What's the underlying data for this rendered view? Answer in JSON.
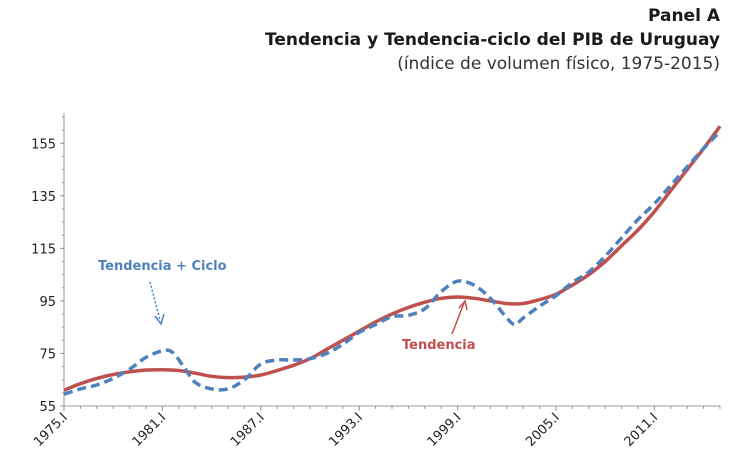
{
  "title": {
    "line1": "Panel A",
    "line2": "Tendencia y Tendencia-ciclo del PIB de Uruguay",
    "line3": "(índice de volumen físico, 1975-2015)"
  },
  "colors": {
    "trend": "#c0504d",
    "cycle": "#4f81bd",
    "axis": "#999999"
  },
  "chart_data": {
    "type": "line",
    "title": "Tendencia y Tendencia-ciclo del PIB de Uruguay",
    "xlabel": "",
    "ylabel": "",
    "xlim": [
      1975.0,
      2015.0
    ],
    "ylim": [
      55,
      165
    ],
    "y_ticks": [
      55,
      75,
      95,
      115,
      135,
      155
    ],
    "x_ticks": [
      {
        "label": "1975.I",
        "value": 1975
      },
      {
        "label": "1981.I",
        "value": 1981
      },
      {
        "label": "1987.I",
        "value": 1987
      },
      {
        "label": "1993.I",
        "value": 1993
      },
      {
        "label": "1999.I",
        "value": 1999
      },
      {
        "label": "2005.I",
        "value": 2005
      },
      {
        "label": "2011.I",
        "value": 2011
      }
    ],
    "grid": false,
    "series": [
      {
        "name": "Tendencia",
        "style": "solid",
        "points": [
          [
            1975,
            61
          ],
          [
            1976,
            63.5
          ],
          [
            1977,
            65.5
          ],
          [
            1978,
            67
          ],
          [
            1979,
            68
          ],
          [
            1980,
            68.7
          ],
          [
            1981,
            68.8
          ],
          [
            1982,
            68.5
          ],
          [
            1983,
            67.5
          ],
          [
            1984,
            66.3
          ],
          [
            1985,
            65.8
          ],
          [
            1986,
            66
          ],
          [
            1987,
            66.8
          ],
          [
            1988,
            68.5
          ],
          [
            1989,
            70.5
          ],
          [
            1990,
            73
          ],
          [
            1991,
            76.5
          ],
          [
            1992,
            80
          ],
          [
            1993,
            83.5
          ],
          [
            1994,
            87
          ],
          [
            1995,
            90
          ],
          [
            1996,
            92.5
          ],
          [
            1997,
            94.5
          ],
          [
            1998,
            96
          ],
          [
            1999,
            96.5
          ],
          [
            2000,
            96
          ],
          [
            2001,
            95
          ],
          [
            2002,
            94
          ],
          [
            2003,
            94
          ],
          [
            2004,
            95.5
          ],
          [
            2005,
            97.5
          ],
          [
            2006,
            101
          ],
          [
            2007,
            105
          ],
          [
            2008,
            110
          ],
          [
            2009,
            116
          ],
          [
            2010,
            122
          ],
          [
            2011,
            129
          ],
          [
            2012,
            137
          ],
          [
            2013,
            145
          ],
          [
            2014,
            153
          ],
          [
            2015,
            161.5
          ]
        ]
      },
      {
        "name": "Tendencia + Ciclo",
        "style": "dashed",
        "points": [
          [
            1975,
            59.5
          ],
          [
            1976,
            61.5
          ],
          [
            1977,
            63
          ],
          [
            1978,
            65.5
          ],
          [
            1979,
            69
          ],
          [
            1980,
            73.5
          ],
          [
            1981,
            76
          ],
          [
            1981.6,
            75.5
          ],
          [
            1982.3,
            70
          ],
          [
            1983,
            64
          ],
          [
            1984,
            61.5
          ],
          [
            1985,
            61.5
          ],
          [
            1986,
            65
          ],
          [
            1987,
            71
          ],
          [
            1988,
            72.5
          ],
          [
            1989,
            72.5
          ],
          [
            1990,
            73
          ],
          [
            1991,
            75
          ],
          [
            1992,
            78.5
          ],
          [
            1993,
            83
          ],
          [
            1994,
            86
          ],
          [
            1995,
            89
          ],
          [
            1996,
            89.5
          ],
          [
            1997,
            92
          ],
          [
            1998,
            98.5
          ],
          [
            1999,
            102.5
          ],
          [
            2000,
            101
          ],
          [
            2001,
            96
          ],
          [
            2002,
            88.5
          ],
          [
            2002.5,
            86
          ],
          [
            2003,
            88.5
          ],
          [
            2004,
            93
          ],
          [
            2005,
            97
          ],
          [
            2006,
            102
          ],
          [
            2007,
            106
          ],
          [
            2008,
            112
          ],
          [
            2009,
            119
          ],
          [
            2010,
            126
          ],
          [
            2011,
            132
          ],
          [
            2012,
            139
          ],
          [
            2013,
            146
          ],
          [
            2014,
            153
          ],
          [
            2015,
            159.5
          ]
        ]
      }
    ],
    "annotations": [
      {
        "text": "Tendencia + Ciclo",
        "series": "Tendencia + Ciclo"
      },
      {
        "text": "Tendencia",
        "series": "Tendencia"
      }
    ]
  }
}
